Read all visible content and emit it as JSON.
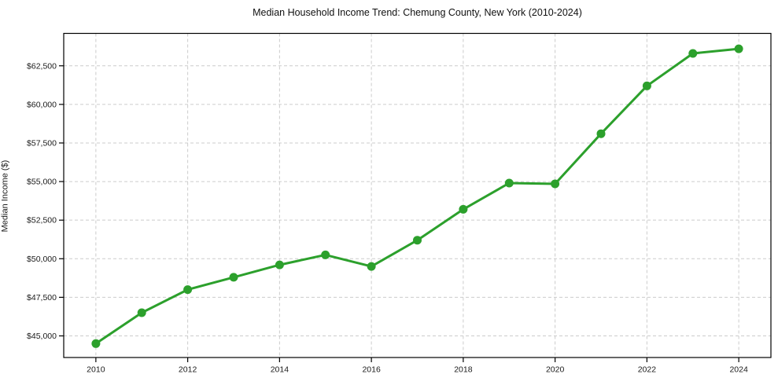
{
  "page": {
    "background": "#ffffff"
  },
  "chart_data": {
    "type": "line",
    "title": "Median Household Income Trend: Chemung County, New York (2010-2024)",
    "xlabel": "",
    "ylabel": "Median Income ($)",
    "x": [
      2010,
      2011,
      2012,
      2013,
      2014,
      2015,
      2016,
      2017,
      2018,
      2019,
      2020,
      2021,
      2022,
      2023,
      2024
    ],
    "values": [
      44500,
      46500,
      48000,
      48800,
      49600,
      50250,
      49500,
      51200,
      53200,
      54900,
      54850,
      58100,
      61200,
      63300,
      63600
    ],
    "xlim": [
      2009.3,
      2024.7
    ],
    "ylim": [
      43600,
      64600
    ],
    "xticks": {
      "values": [
        2010,
        2012,
        2014,
        2016,
        2018,
        2020,
        2022,
        2024
      ],
      "labels": [
        "2010",
        "2012",
        "2014",
        "2016",
        "2018",
        "2020",
        "2022",
        "2024"
      ]
    },
    "yticks": {
      "values": [
        45000,
        47500,
        50000,
        52500,
        55000,
        57500,
        60000,
        62500
      ],
      "labels": [
        "$45,000",
        "$47,500",
        "$50,000",
        "$52,500",
        "$55,000",
        "$57,500",
        "$60,000",
        "$62,500"
      ]
    },
    "grid": true,
    "legend": "none",
    "style": {
      "line_color": "#2ca02c",
      "marker": "circle",
      "marker_diameter": 11,
      "line_width": 3,
      "grid_color": "#cccccc",
      "grid_dash": "4 3",
      "axis_color": "#000000",
      "tick_label_color": "#1a1a1a"
    }
  }
}
